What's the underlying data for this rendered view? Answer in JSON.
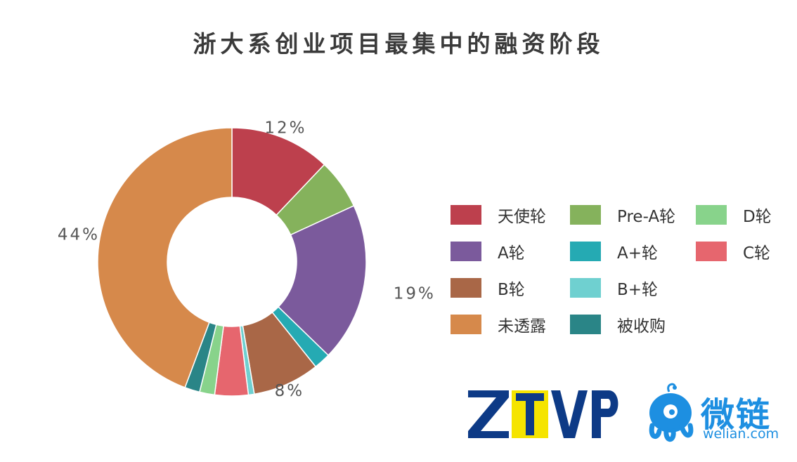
{
  "title": "浙大系创业项目最集中的融资阶段",
  "chart_data": {
    "type": "pie",
    "donut": true,
    "title": "浙大系创业项目最集中的融资阶段",
    "labels_shown": [
      "天使轮",
      "Pre-A轮",
      "A轮",
      "A+轮",
      "B轮",
      "B+轮",
      "C轮",
      "D轮",
      "被收购",
      "未透露"
    ],
    "slices": [
      {
        "name": "天使轮",
        "value": 12,
        "color": "#bd404d",
        "label": "12%"
      },
      {
        "name": "Pre-A轮",
        "value": 6,
        "color": "#85b25c"
      },
      {
        "name": "A轮",
        "value": 19,
        "color": "#7b5a9c",
        "label": "19%"
      },
      {
        "name": "A+轮",
        "value": 2,
        "color": "#25aab3"
      },
      {
        "name": "B轮",
        "value": 8,
        "color": "#a96747",
        "label": "8%"
      },
      {
        "name": "B+轮",
        "value": 0.7,
        "color": "#6fd0d0"
      },
      {
        "name": "C轮",
        "value": 4,
        "color": "#e6666e"
      },
      {
        "name": "D轮",
        "value": 1.8,
        "color": "#88d38b"
      },
      {
        "name": "被收购",
        "value": 1.8,
        "color": "#2a8587"
      },
      {
        "name": "未透露",
        "value": 44,
        "color": "#d6894b",
        "label": "44%"
      }
    ]
  },
  "legend": [
    {
      "label": "天使轮",
      "color": "#bd404d"
    },
    {
      "label": "Pre-A轮",
      "color": "#85b25c"
    },
    {
      "label": "D轮",
      "color": "#88d38b"
    },
    {
      "label": "A轮",
      "color": "#7b5a9c"
    },
    {
      "label": "A+轮",
      "color": "#25aab3"
    },
    {
      "label": "C轮",
      "color": "#e6666e"
    },
    {
      "label": "B轮",
      "color": "#a96747"
    },
    {
      "label": "B+轮",
      "color": "#6fd0d0"
    },
    {
      "label": "未透露",
      "color": "#d6894b"
    },
    {
      "label": "被收购",
      "color": "#2a8587"
    }
  ],
  "logos": {
    "ztvp": "ZTVP",
    "welian_text": "微链",
    "welian_domain": "welian.com"
  }
}
